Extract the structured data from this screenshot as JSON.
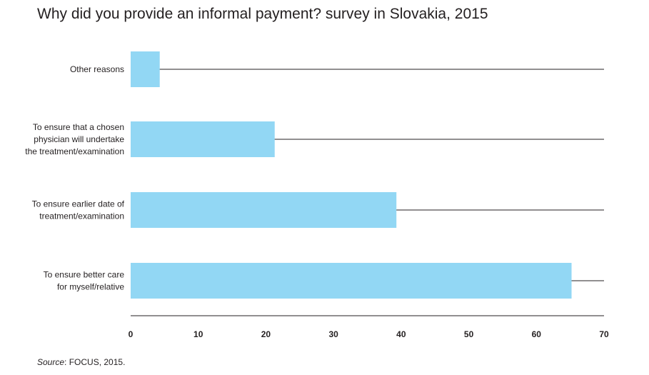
{
  "title": "Why did you provide an informal payment? survey in Slovakia, 2015",
  "source": {
    "label": "Source",
    "separator": ": ",
    "text": "FOCUS, 2015."
  },
  "colors": {
    "bar": "#92d7f4",
    "axis": "#231f20",
    "text": "#231f20"
  },
  "chart_data": {
    "type": "bar",
    "orientation": "horizontal",
    "title": "Why did you provide an informal payment? survey in Slovakia, 2015",
    "categories": [
      [
        "Other reasons"
      ],
      [
        "To ensure that a chosen",
        "physician will undertake",
        "the treatment/examination"
      ],
      [
        "To ensure earlier date of",
        "treatment/examination"
      ],
      [
        "To ensure better care",
        "for myself/relative"
      ]
    ],
    "values": [
      4.3,
      21.3,
      39.3,
      65.2
    ],
    "xlim": [
      0,
      70
    ],
    "xticks": [
      0,
      10,
      20,
      30,
      40,
      50,
      60,
      70
    ],
    "xlabel": "",
    "ylabel": "",
    "grid": false,
    "legend": "none"
  }
}
